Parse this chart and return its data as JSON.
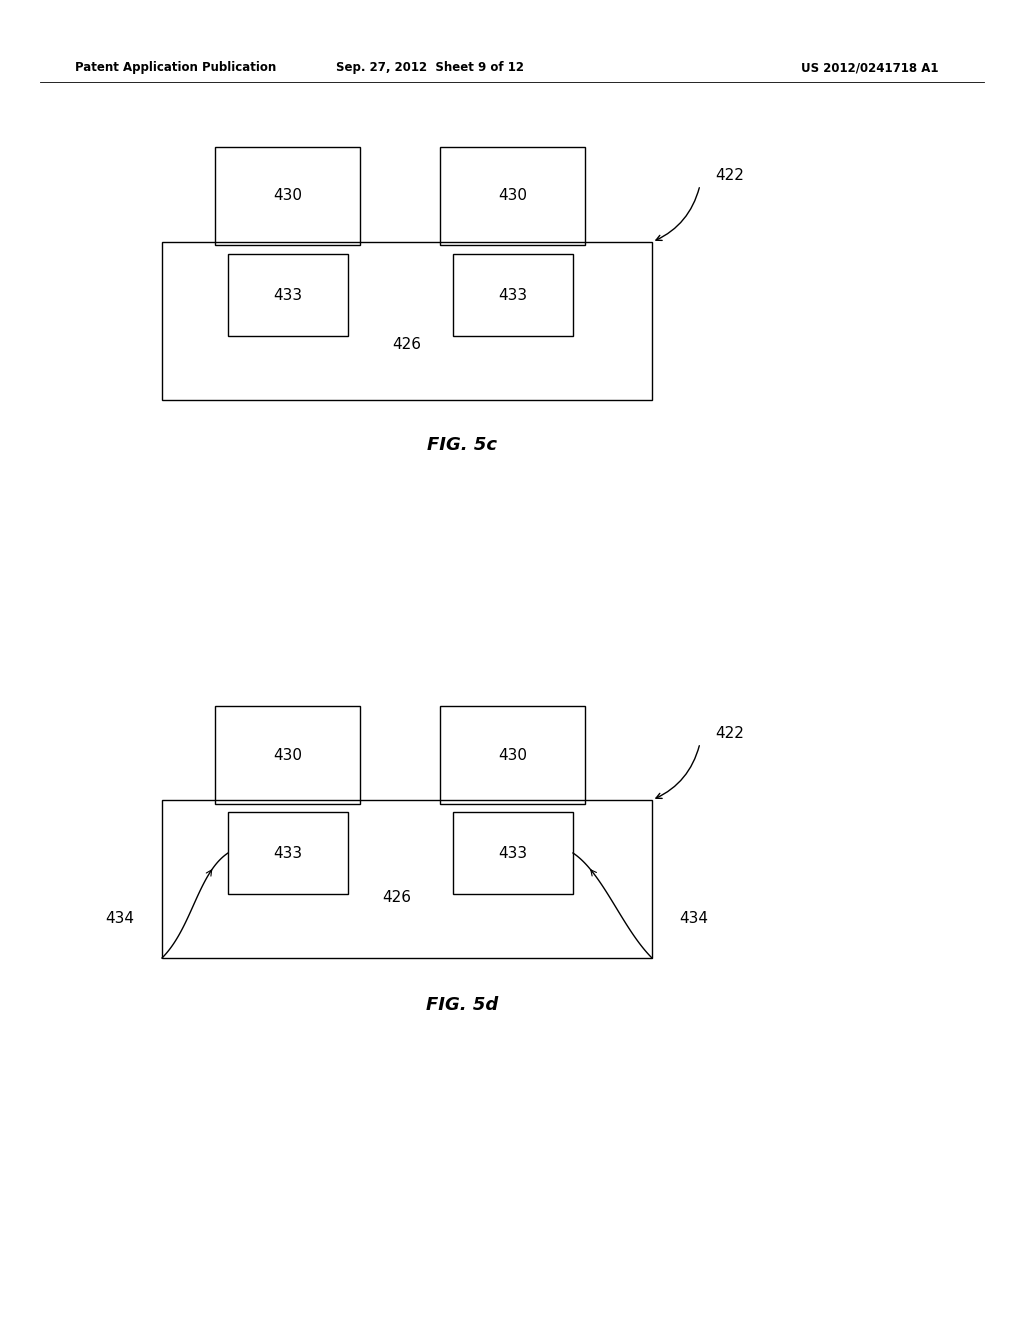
{
  "bg_color": "#ffffff",
  "line_color": "#000000",
  "text_color": "#000000",
  "header_left": "Patent Application Publication",
  "header_center": "Sep. 27, 2012  Sheet 9 of 12",
  "header_right": "US 2012/0241718 A1",
  "fig5c_label": "FIG. 5c",
  "fig5d_label": "FIG. 5d",
  "fig_lw": 1.0
}
